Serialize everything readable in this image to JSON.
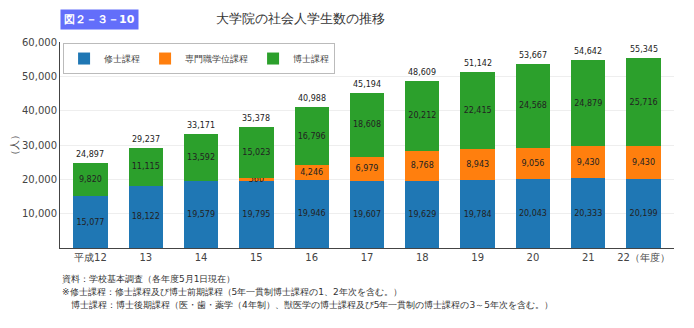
{
  "chart_data": {
    "type": "bar",
    "stacked": true,
    "figure_label": "図２－３－10",
    "title": "大学院の社会人学生数の推移",
    "y_label": "（人）",
    "categories": [
      "平成12",
      "13",
      "14",
      "15",
      "16",
      "17",
      "18",
      "19",
      "20",
      "21",
      "22（年度）"
    ],
    "series": [
      {
        "name": "修士課程",
        "values": [
          15077,
          18122,
          19579,
          19795,
          19946,
          19607,
          19629,
          19784,
          20043,
          20333,
          20199
        ],
        "value_labels": [
          "15,077",
          "18,122",
          "19,579",
          "19,795",
          "19,946",
          "19,607",
          "19,629",
          "19,784",
          "20,043",
          "20,333",
          "20,199"
        ]
      },
      {
        "name": "専門職学位課程",
        "values": [
          0,
          0,
          0,
          560,
          4246,
          6979,
          8768,
          8943,
          9056,
          9430,
          9430
        ],
        "value_labels": [
          null,
          null,
          null,
          "560",
          "4,246",
          "6,979",
          "8,768",
          "8,943",
          "9,056",
          "9,430",
          "9,430"
        ]
      },
      {
        "name": "博士課程",
        "values": [
          9820,
          11115,
          13592,
          15023,
          16796,
          18608,
          20212,
          22415,
          24568,
          24879,
          25716
        ],
        "value_labels": [
          "9,820",
          "11,115",
          "13,592",
          "15,023",
          "16,796",
          "18,608",
          "20,212",
          "22,415",
          "24,568",
          "24,879",
          "25,716"
        ]
      }
    ],
    "totals": [
      24897,
      29237,
      33171,
      35378,
      40988,
      45194,
      48609,
      51142,
      53667,
      54642,
      55345
    ],
    "total_labels": [
      "24,897",
      "29,237",
      "33,171",
      "35,378",
      "40,988",
      "45,194",
      "48,609",
      "51,142",
      "53,667",
      "54,642",
      "55,345"
    ],
    "ylim": [
      0,
      60000
    ],
    "yticks": [
      {
        "value": 0,
        "label": null
      },
      {
        "value": 10000,
        "label": "10,000"
      },
      {
        "value": 20000,
        "label": "20,000"
      },
      {
        "value": 30000,
        "label": "30,000"
      },
      {
        "value": 40000,
        "label": "40,000"
      },
      {
        "value": 50000,
        "label": "50,000"
      },
      {
        "value": 60000,
        "label": "60,000"
      }
    ],
    "grid": true,
    "legend": "upper left",
    "data_labels": true,
    "notes": [
      "資料：学校基本調査（各年度5月1日現在）",
      "※修士課程：修士課程及び博士前期課程（5年一貫制博士課程の1、2年次を含む。）",
      "　博士課程：博士後期課程（医・歯・薬学（4年制）、獣医学の博士課程及び5年一貫制の博士課程の3～5年次を含む。）"
    ]
  }
}
